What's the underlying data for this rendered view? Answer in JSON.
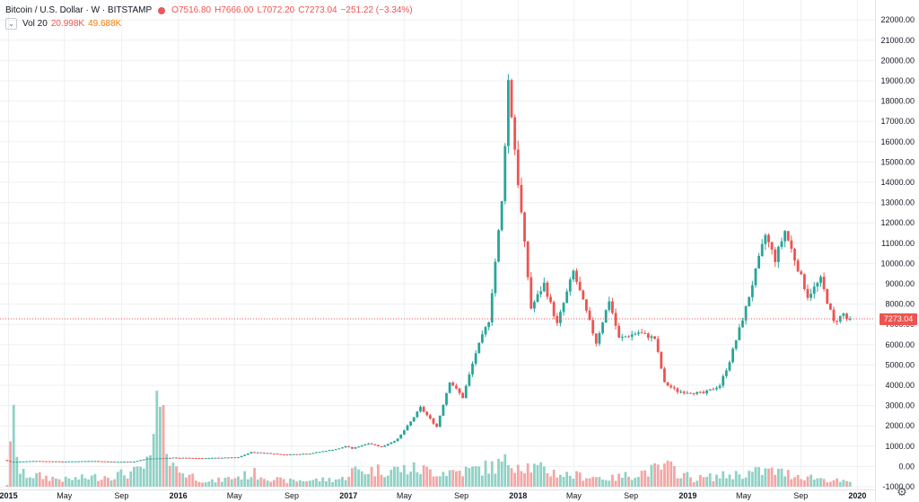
{
  "legend": {
    "symbol": "Bitcoin / U.S. Dollar · W · BITSTAMP",
    "open": "O7516.80",
    "high": "H7666.00",
    "low": "L7072.20",
    "close": "C7273.04",
    "change": "−251.22 (−3.34%)",
    "vol_label": "Vol 20",
    "vol_value": "20.998K",
    "vol_ma": "49.688K",
    "toggle_icon": "chevron-down-icon"
  },
  "price_tag": "7273.04",
  "colors": {
    "up": "#26a69a",
    "down": "#ef5350",
    "up_vol": "#8fd2c6",
    "down_vol": "#f4a6a4",
    "last_line": "#ef5350"
  },
  "y_ticks": [
    "22000.00",
    "21000.00",
    "20000.00",
    "19000.00",
    "18000.00",
    "17000.00",
    "16000.00",
    "15000.00",
    "14000.00",
    "13000.00",
    "12000.00",
    "11000.00",
    "10000.00",
    "9000.00",
    "8000.00",
    "7000.00",
    "6000.00",
    "5000.00",
    "4000.00",
    "3000.00",
    "2000.00",
    "1000.00",
    "0.00",
    "-1000.00"
  ],
  "x_ticks": [
    {
      "label": "2015",
      "major": true
    },
    {
      "label": "May",
      "major": false
    },
    {
      "label": "Sep",
      "major": false
    },
    {
      "label": "2016",
      "major": true
    },
    {
      "label": "May",
      "major": false
    },
    {
      "label": "Sep",
      "major": false
    },
    {
      "label": "2017",
      "major": true
    },
    {
      "label": "May",
      "major": false
    },
    {
      "label": "Sep",
      "major": false
    },
    {
      "label": "2018",
      "major": true
    },
    {
      "label": "May",
      "major": false
    },
    {
      "label": "Sep",
      "major": false
    },
    {
      "label": "2019",
      "major": true
    },
    {
      "label": "May",
      "major": false
    },
    {
      "label": "Sep",
      "major": false
    },
    {
      "label": "2020",
      "major": true
    }
  ],
  "settings_icon": "gear-icon",
  "chart_data": {
    "type": "candlestick",
    "title": "Bitcoin / U.S. Dollar · W · BITSTAMP",
    "ylim": [
      -1000,
      22000
    ],
    "xlim": [
      "2014-12-29",
      "2020-01-06"
    ],
    "last_price": 7273.04,
    "grid": true,
    "interval": "weekly",
    "price_path": [
      [
        "2014-12-29",
        320
      ],
      [
        "2015-01-12",
        220
      ],
      [
        "2015-03-02",
        270
      ],
      [
        "2015-05-04",
        240
      ],
      [
        "2015-07-06",
        270
      ],
      [
        "2015-08-24",
        230
      ],
      [
        "2015-10-05",
        240
      ],
      [
        "2015-11-02",
        380
      ],
      [
        "2015-12-28",
        430
      ],
      [
        "2016-03-07",
        410
      ],
      [
        "2016-05-16",
        450
      ],
      [
        "2016-06-13",
        700
      ],
      [
        "2016-07-18",
        660
      ],
      [
        "2016-08-22",
        580
      ],
      [
        "2016-10-17",
        640
      ],
      [
        "2016-12-19",
        880
      ],
      [
        "2017-01-02",
        1000
      ],
      [
        "2017-01-16",
        880
      ],
      [
        "2017-02-20",
        1150
      ],
      [
        "2017-03-20",
        960
      ],
      [
        "2017-04-24",
        1350
      ],
      [
        "2017-05-22",
        2200
      ],
      [
        "2017-06-12",
        2900
      ],
      [
        "2017-07-17",
        1950
      ],
      [
        "2017-08-14",
        4200
      ],
      [
        "2017-09-11",
        3400
      ],
      [
        "2017-10-09",
        5600
      ],
      [
        "2017-11-06",
        7200
      ],
      [
        "2017-12-04",
        13000
      ],
      [
        "2017-12-18",
        19000
      ],
      [
        "2018-01-08",
        14000
      ],
      [
        "2018-02-05",
        7800
      ],
      [
        "2018-03-05",
        9000
      ],
      [
        "2018-04-02",
        7000
      ],
      [
        "2018-05-07",
        9600
      ],
      [
        "2018-06-25",
        6100
      ],
      [
        "2018-07-23",
        8200
      ],
      [
        "2018-08-13",
        6300
      ],
      [
        "2018-09-24",
        6600
      ],
      [
        "2018-10-29",
        6300
      ],
      [
        "2018-11-19",
        4100
      ],
      [
        "2018-12-17",
        3700
      ],
      [
        "2019-02-11",
        3600
      ],
      [
        "2019-03-18",
        4000
      ],
      [
        "2019-04-08",
        5200
      ],
      [
        "2019-05-13",
        7800
      ],
      [
        "2019-06-24",
        11400
      ],
      [
        "2019-07-15",
        10200
      ],
      [
        "2019-08-05",
        11600
      ],
      [
        "2019-09-23",
        8400
      ],
      [
        "2019-10-21",
        9200
      ],
      [
        "2019-11-18",
        7100
      ],
      [
        "2019-12-09",
        7516
      ],
      [
        "2019-12-16",
        7273
      ]
    ],
    "volume_path": [
      [
        "2014-12-29",
        120
      ],
      [
        "2015-01-12",
        3500
      ],
      [
        "2015-01-26",
        700
      ],
      [
        "2015-05-04",
        380
      ],
      [
        "2015-08-17",
        620
      ],
      [
        "2015-10-05",
        800
      ],
      [
        "2015-11-02",
        1300
      ],
      [
        "2015-11-16",
        4100
      ],
      [
        "2015-12-28",
        900
      ],
      [
        "2016-03-07",
        250
      ],
      [
        "2016-06-13",
        700
      ],
      [
        "2016-08-15",
        300
      ],
      [
        "2016-12-19",
        420
      ],
      [
        "2017-01-09",
        850
      ],
      [
        "2017-05-22",
        950
      ],
      [
        "2017-07-17",
        800
      ],
      [
        "2017-09-11",
        850
      ],
      [
        "2017-11-13",
        1100
      ],
      [
        "2017-12-18",
        1400
      ],
      [
        "2018-02-05",
        1000
      ],
      [
        "2018-04-09",
        650
      ],
      [
        "2018-07-23",
        450
      ],
      [
        "2018-11-19",
        1050
      ],
      [
        "2019-01-14",
        420
      ],
      [
        "2019-06-24",
        850
      ],
      [
        "2019-09-23",
        520
      ],
      [
        "2019-12-16",
        220
      ]
    ]
  }
}
